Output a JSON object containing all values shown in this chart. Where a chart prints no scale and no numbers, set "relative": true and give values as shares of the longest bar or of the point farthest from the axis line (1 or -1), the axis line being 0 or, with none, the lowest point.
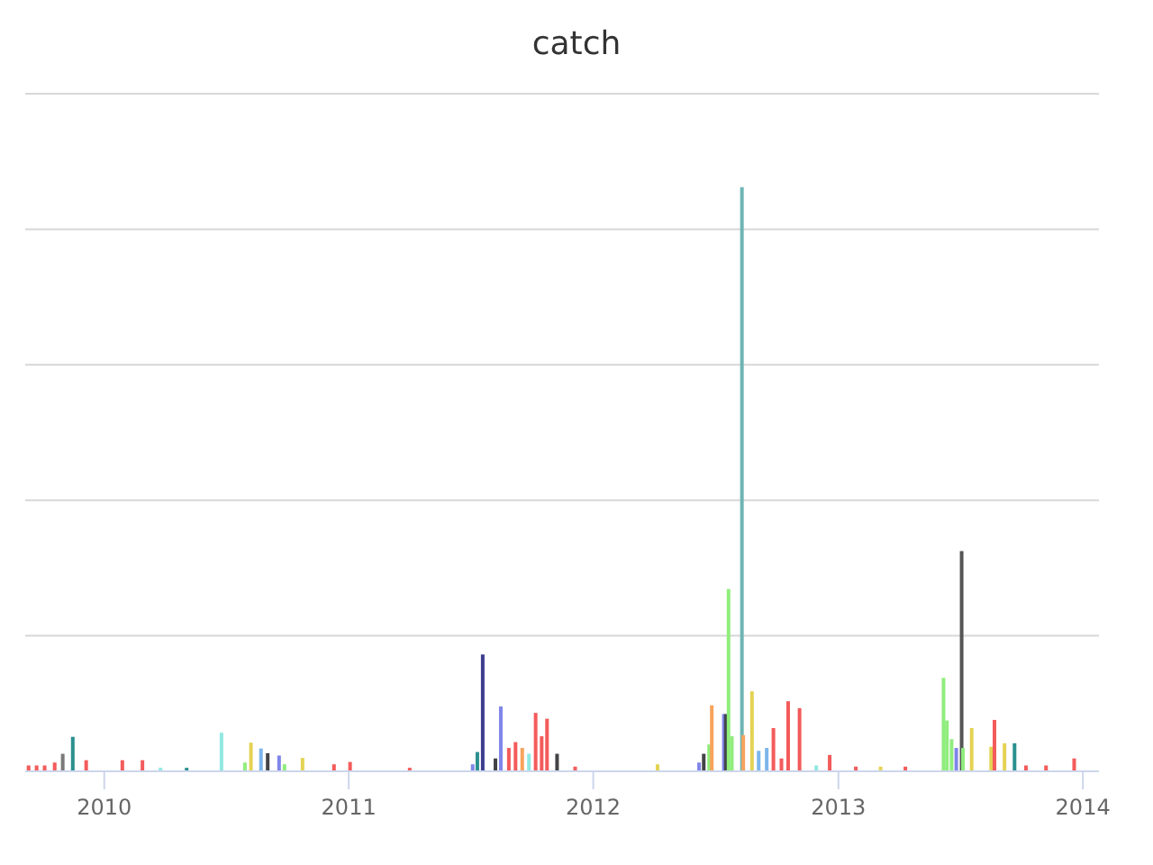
{
  "chart_data": {
    "type": "bar",
    "title": "catch",
    "relative": true,
    "grid": "y",
    "xlim": [
      "2009-09-05",
      "2014-01-25"
    ],
    "xticks": [
      {
        "value": "2010-01-01",
        "label": "2010"
      },
      {
        "value": "2011-01-01",
        "label": "2011"
      },
      {
        "value": "2012-01-01",
        "label": "2012"
      },
      {
        "value": "2013-01-01",
        "label": "2013"
      },
      {
        "value": "2014-01-01",
        "label": "2014"
      }
    ],
    "x": [
      "2009-09-10",
      "2009-09-22",
      "2009-10-04",
      "2009-10-19",
      "2009-10-31",
      "2009-11-15",
      "2009-12-05",
      "2010-01-28",
      "2010-02-27",
      "2010-03-26",
      "2010-05-04",
      "2010-06-25",
      "2010-07-30",
      "2010-08-08",
      "2010-08-23",
      "2010-09-02",
      "2010-09-19",
      "2010-09-27",
      "2010-10-24",
      "2010-12-10",
      "2011-01-03",
      "2011-04-02",
      "2011-07-05",
      "2011-07-12",
      "2011-07-20",
      "2011-08-08",
      "2011-08-16",
      "2011-08-28",
      "2011-09-07",
      "2011-09-17",
      "2011-09-27",
      "2011-10-07",
      "2011-10-16",
      "2011-10-24",
      "2011-11-08",
      "2011-12-05",
      "2012-04-06",
      "2012-06-07",
      "2012-06-14",
      "2012-06-22",
      "2012-06-26",
      "2012-07-14",
      "2012-07-17",
      "2012-07-21",
      "2012-07-26",
      "2012-08-10",
      "2012-08-12",
      "2012-08-25",
      "2012-09-04",
      "2012-09-16",
      "2012-09-26",
      "2012-10-08",
      "2012-10-18",
      "2012-11-04",
      "2012-11-29",
      "2012-12-19",
      "2013-01-27",
      "2013-03-05",
      "2013-04-11",
      "2013-06-07",
      "2013-06-12",
      "2013-06-19",
      "2013-06-26",
      "2013-07-04",
      "2013-07-06",
      "2013-07-19",
      "2013-08-17",
      "2013-08-22",
      "2013-09-06",
      "2013-09-21",
      "2013-10-08",
      "2013-11-07",
      "2013-12-19"
    ],
    "values": [
      0.01,
      0.01,
      0.01,
      0.015,
      0.03,
      0.059,
      0.019,
      0.019,
      0.019,
      0.006,
      0.006,
      0.066,
      0.015,
      0.049,
      0.039,
      0.031,
      0.027,
      0.012,
      0.023,
      0.012,
      0.016,
      0.006,
      0.012,
      0.033,
      0.2,
      0.022,
      0.111,
      0.04,
      0.05,
      0.04,
      0.03,
      0.1,
      0.06,
      0.09,
      0.03,
      0.008,
      0.012,
      0.015,
      0.03,
      0.046,
      0.113,
      0.098,
      0.098,
      0.312,
      0.06,
      1,
      0.062,
      0.137,
      0.035,
      0.04,
      0.074,
      0.022,
      0.12,
      0.108,
      0.01,
      0.028,
      0.008,
      0.008,
      0.008,
      0.16,
      0.087,
      0.055,
      0.04,
      0.377,
      0.04,
      0.074,
      0.042,
      0.088,
      0.048,
      0.048,
      0.01,
      0.01,
      0.022
    ],
    "colors": [
      "#f45b5b",
      "#f45b5b",
      "#f45b5b",
      "#f45b5b",
      "#7a7a7a",
      "#2b908f",
      "#f45b5b",
      "#f45b5b",
      "#f45b5b",
      "#91e8e1",
      "#2b908f",
      "#91e8e1",
      "#90ed7d",
      "#e4d354",
      "#7cb5ec",
      "#434348",
      "#8085e9",
      "#90ed7d",
      "#e4d354",
      "#f45b5b",
      "#f45b5b",
      "#f45b5b",
      "#8085e9",
      "#2b908f",
      "#3d3d8f",
      "#434348",
      "#8085e9",
      "#f45b5b",
      "#f45b5b",
      "#f7a35c",
      "#91e8e1",
      "#f45b5b",
      "#f45b5b",
      "#f45b5b",
      "#434348",
      "#f45b5b",
      "#e4d354",
      "#8085e9",
      "#434348",
      "#90ed7d",
      "#f7a35c",
      "#8085e9",
      "#434348",
      "#90ed7d",
      "#90ed7d",
      "#6eb5b5",
      "#f7a35c",
      "#e4d354",
      "#7cb5ec",
      "#7cb5ec",
      "#f45b5b",
      "#f45b5b",
      "#f45b5b",
      "#f45b5b",
      "#91e8e1",
      "#f45b5b",
      "#f45b5b",
      "#e4d354",
      "#f45b5b",
      "#90ed7d",
      "#90ed7d",
      "#90ed7d",
      "#8085e9",
      "#555555",
      "#90ed7d",
      "#e4d354",
      "#e4d354",
      "#f45b5b",
      "#e4d354",
      "#2b908f",
      "#f45b5b",
      "#f45b5b",
      "#f45b5b"
    ]
  }
}
